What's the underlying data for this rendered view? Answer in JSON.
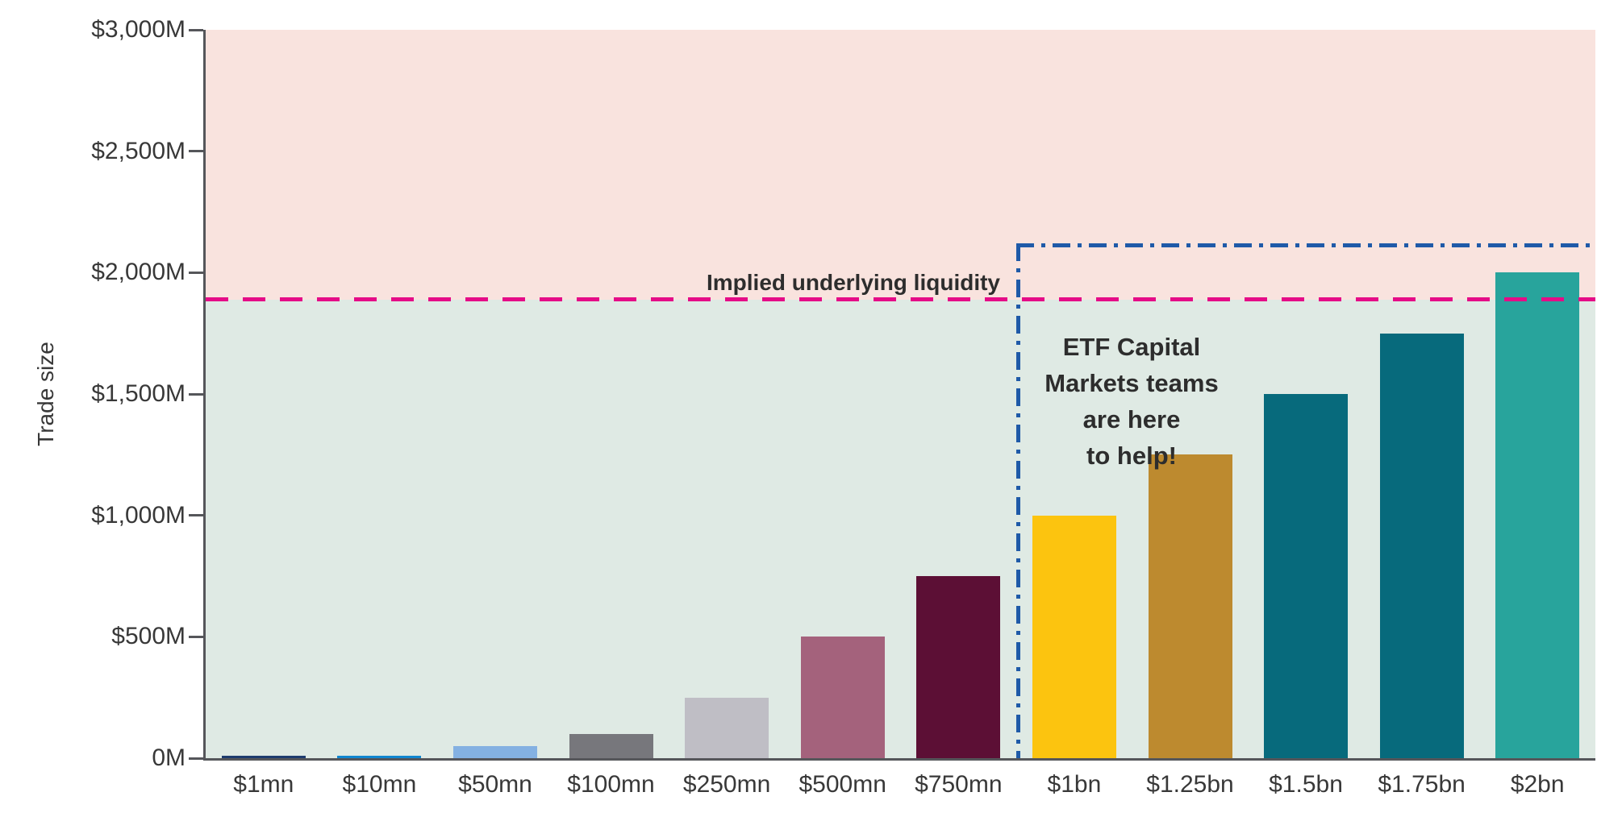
{
  "chart_data": {
    "type": "bar",
    "title": "",
    "xlabel": "",
    "ylabel": "Trade size",
    "ylim": [
      0,
      3000
    ],
    "grid": false,
    "legend": "none",
    "categories": [
      "$1mn",
      "$10mn",
      "$50mn",
      "$100mn",
      "$250mn",
      "$500mn",
      "$750mn",
      "$1bn",
      "$1.25bn",
      "$1.5bn",
      "$1.75bn",
      "$2bn"
    ],
    "values": [
      1,
      10,
      50,
      100,
      250,
      500,
      750,
      1000,
      1250,
      1500,
      1750,
      2000
    ],
    "bar_colors": [
      "#1e3c6e",
      "#0f86d0",
      "#84b1e2",
      "#77777c",
      "#bfbec5",
      "#a4627c",
      "#5c0f35",
      "#fcc40f",
      "#bd8a2f",
      "#076a7c",
      "#076a7c",
      "#28a49c"
    ],
    "y_ticks": [
      {
        "value": 0,
        "label": "0M"
      },
      {
        "value": 500,
        "label": "$500M"
      },
      {
        "value": 1000,
        "label": "$1,000M"
      },
      {
        "value": 1500,
        "label": "$1,500M"
      },
      {
        "value": 2000,
        "label": "$2,000M"
      },
      {
        "value": 2500,
        "label": "$2,500M"
      },
      {
        "value": 3000,
        "label": "$3,000M"
      }
    ],
    "regions": {
      "above_line_color": "#f9e3de",
      "below_line_color": "#dfeae4"
    },
    "reference_line": {
      "label": "Implied underlying liquidity",
      "value": 1890,
      "color": "#e50c87",
      "style": "dashed"
    },
    "callout_box": {
      "lines": [
        "ETF Capital",
        "Markets teams",
        "are here",
        "to help!"
      ],
      "top_value": 2120,
      "start_category_index": 7,
      "color": "#1f5aa8",
      "style": "dash-dot"
    },
    "axis_color": "#55565a",
    "tick_text_color": "#383838",
    "annotation_text_color": "#2d2d2d"
  }
}
